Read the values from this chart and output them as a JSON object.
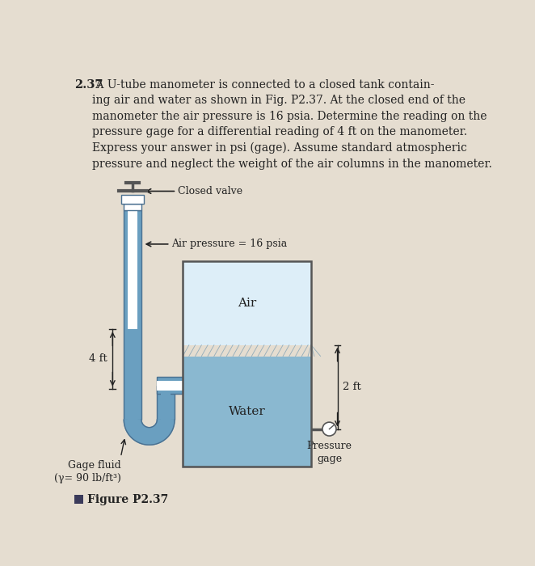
{
  "bg_color": "#e5ddd0",
  "text_color": "#222222",
  "fluid_color": "#7aabcc",
  "fluid_dark": "#5a8aaa",
  "water_color": "#8ab8d0",
  "air_color": "#ddeef8",
  "tube_wall_color": "#6a9fc0",
  "tank_outline": "#555555",
  "tube_outline": "#4a7090",
  "problem_number": "2.37",
  "problem_text": " A U-tube manometer is connected to a closed tank contain-\ning air and water as shown in Fig. P2.37. At the closed end of the\nmanometer the air pressure is 16 psia. Determine the reading on the\npressure gage for a differential reading of 4 ft on the manometer.\nExpress your answer in psi (gage). Assume standard atmospheric\npressure and neglect the weight of the air columns in the manometer.",
  "figure_label": "Figure P2.37",
  "label_closed_valve": "Closed valve",
  "label_air_pressure": "Air pressure = 16 psia",
  "label_4ft": "4 ft",
  "label_2ft": "2 ft",
  "label_air": "Air",
  "label_water": "Water",
  "label_gage_fluid": "Gage fluid\n(γ= 90 lb/ft³)",
  "label_pressure_gage": "Pressure\ngage",
  "square_color": "#3a3a5a"
}
